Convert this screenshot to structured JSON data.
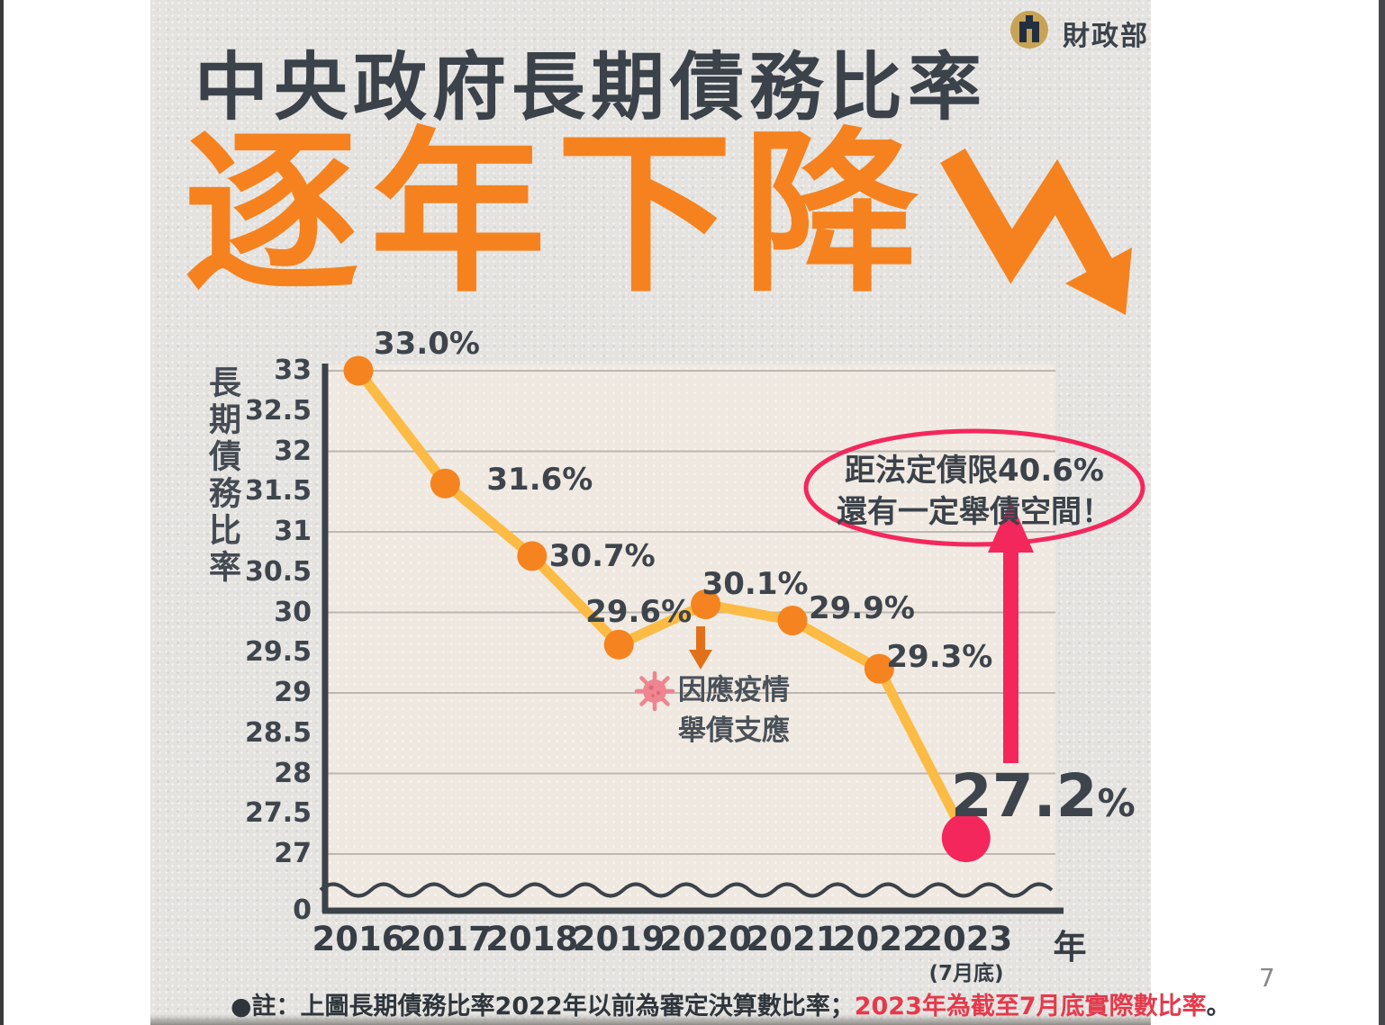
{
  "page": {
    "number": "7"
  },
  "header": {
    "ministry": "財政部",
    "title": "中央政府長期債務比率",
    "headline": "逐年下降"
  },
  "chart_data": {
    "type": "line",
    "y_axis_title": "長期債務比率",
    "x_axis_title": "年",
    "categories": [
      "2016",
      "2017",
      "2018",
      "2019",
      "2020",
      "2021",
      "2022",
      "2023"
    ],
    "x_sublabel": "(7月底)",
    "values": [
      33.0,
      31.6,
      30.7,
      29.6,
      30.1,
      29.9,
      29.3,
      27.2
    ],
    "point_labels": [
      "33.0%",
      "31.6%",
      "30.7%",
      "29.6%",
      "30.1%",
      "29.9%",
      "29.3%",
      "27.2%"
    ],
    "y_ticks": [
      "33",
      "32.5",
      "32",
      "31.5",
      "31",
      "30.5",
      "30",
      "29.5",
      "29",
      "28.5",
      "28",
      "27.5",
      "27",
      "0"
    ],
    "ylim": [
      27,
      33
    ],
    "axis_break_to_zero": true,
    "gridlines_at": [
      33,
      32,
      31,
      30,
      29,
      28,
      27
    ],
    "legend": "none",
    "colors": {
      "line": "#fbbb45",
      "point": "#f5831f",
      "highlight_point": "#f4275c",
      "grid": "#bcb8b1",
      "axis": "#3b424a",
      "headline_orange": "#f5821f",
      "annotation_pink": "#f4275c",
      "covid_arrow_orange": "#e2701b",
      "virus_pink": "#ee8590",
      "note_red": "#e6394b"
    },
    "annotations": {
      "covid": {
        "line1": "因應疫情",
        "line2": "舉債支應"
      },
      "debt_limit": {
        "line1": "距法定債限40.6%",
        "line2": "還有一定舉債空間！"
      }
    }
  },
  "note": {
    "part1": "●註：上圖長期債務比率2022年以前為審定決算數比率；",
    "part2": "2023年為截至7月底實際數比率",
    "part3": "。"
  }
}
